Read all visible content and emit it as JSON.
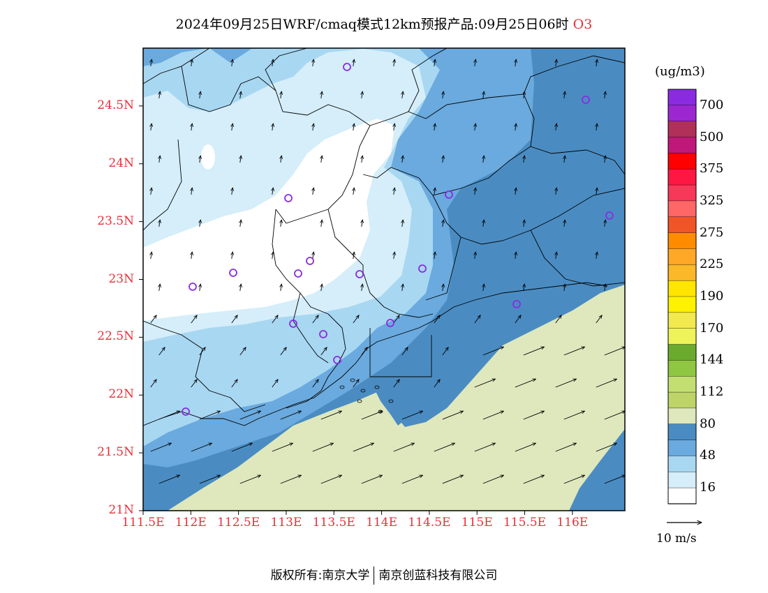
{
  "title": {
    "main": "2024年09月25日WRF/cmaq模式12km预报产品:09月25日06时",
    "species": "O3"
  },
  "axes": {
    "lat_labels": [
      "24.5N",
      "24N",
      "23.5N",
      "23N",
      "22.5N",
      "22N",
      "21.5N",
      "21N"
    ],
    "lon_labels": [
      "111.5E",
      "112E",
      "112.5E",
      "113E",
      "113.5E",
      "114E",
      "114.5E",
      "115E",
      "115.5E",
      "116E"
    ]
  },
  "colorbar": {
    "units": "(ug/m3)",
    "labels": [
      "700",
      "500",
      "375",
      "325",
      "275",
      "225",
      "190",
      "170",
      "144",
      "112",
      "80",
      "48",
      "16"
    ],
    "colors_top_to_bottom": [
      "#8a2be2",
      "#9c27d0",
      "#b0305a",
      "#c0187a",
      "#ff0000",
      "#ff1744",
      "#f73859",
      "#ff6666",
      "#f05528",
      "#ff8c00",
      "#ffa726",
      "#fbb829",
      "#ffe500",
      "#fff200",
      "#f2e94e",
      "#eef35a",
      "#6aab2e",
      "#8fc742",
      "#c3df72",
      "#bfd468",
      "#dfe8bd",
      "#4a8cc2",
      "#6aaade",
      "#a8d7f2",
      "#d5eef9",
      "#ffffff"
    ]
  },
  "map": {
    "colors": {
      "ocean_low": "#dfe8bd",
      "level_80": "#4a8cc2",
      "level_64": "#6aaade",
      "level_48": "#a8d7f2",
      "level_32": "#d5eef9",
      "level_16": "#ffffff",
      "circle": "#8a2be2"
    }
  },
  "wind_reference": {
    "label": "10 m/s"
  },
  "footer": {
    "left": "版权所有:南京大学",
    "right": "南京创蓝科技有限公司"
  }
}
